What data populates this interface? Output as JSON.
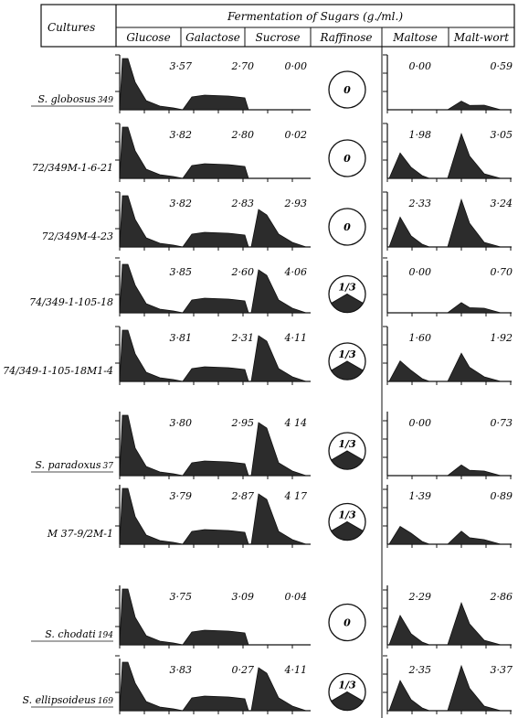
{
  "header": {
    "cultures_label": "Cultures",
    "fermentation_title": "Fermentation of Sugars (g./ml.)",
    "sugars": [
      "Glucose",
      "Galactose",
      "Sucrose",
      "Raffinose",
      "Maltose",
      "Malt-wort"
    ]
  },
  "rows": [
    {
      "culture": "S. globosus",
      "strain": "349",
      "underlined": true,
      "glucose": "3·57",
      "galactose": "2·70",
      "sucrose": "0·00",
      "raffinose": "0",
      "maltose": "0·00",
      "maltwort": "0·59"
    },
    {
      "culture": "72/349M-1-6-21",
      "strain": "",
      "underlined": false,
      "glucose": "3·82",
      "galactose": "2·80",
      "sucrose": "0·02",
      "raffinose": "0",
      "maltose": "1·98",
      "maltwort": "3·05"
    },
    {
      "culture": "72/349M-4-23",
      "strain": "",
      "underlined": false,
      "glucose": "3·82",
      "galactose": "2·83",
      "sucrose": "2·93",
      "raffinose": "0",
      "maltose": "2·33",
      "maltwort": "3·24"
    },
    {
      "culture": "74/349-1-105-18",
      "strain": "",
      "underlined": false,
      "glucose": "3·85",
      "galactose": "2·60",
      "sucrose": "4·06",
      "raffinose": "1/3",
      "maltose": "0·00",
      "maltwort": "0·70"
    },
    {
      "culture": "74/349-1-105-18M1-4",
      "strain": "",
      "underlined": false,
      "glucose": "3·81",
      "galactose": "2·31",
      "sucrose": "4·11",
      "raffinose": "1/3",
      "maltose": "1·60",
      "maltwort": "1·92"
    },
    {
      "culture": "S. paradoxus",
      "strain": "37",
      "underlined": true,
      "glucose": "3·80",
      "galactose": "2·95",
      "sucrose": "4 14",
      "raffinose": "1/3",
      "maltose": "0·00",
      "maltwort": "0·73"
    },
    {
      "culture": "M 37-9/2M-1",
      "strain": "",
      "underlined": false,
      "glucose": "3·79",
      "galactose": "2·87",
      "sucrose": "4 17",
      "raffinose": "1/3",
      "maltose": "1·39",
      "maltwort": "0·89"
    },
    {
      "culture": "S. chodati",
      "strain": "194",
      "underlined": true,
      "glucose": "3·75",
      "galactose": "3·09",
      "sucrose": "0·04",
      "raffinose": "0",
      "maltose": "2·29",
      "maltwort": "2·86"
    },
    {
      "culture": "S. ellipsoideus",
      "strain": "169",
      "underlined": true,
      "glucose": "3·83",
      "galactose": "0·27",
      "sucrose": "4·11",
      "raffinose": "1/3",
      "maltose": "2·35",
      "maltwort": "3·37"
    }
  ]
}
